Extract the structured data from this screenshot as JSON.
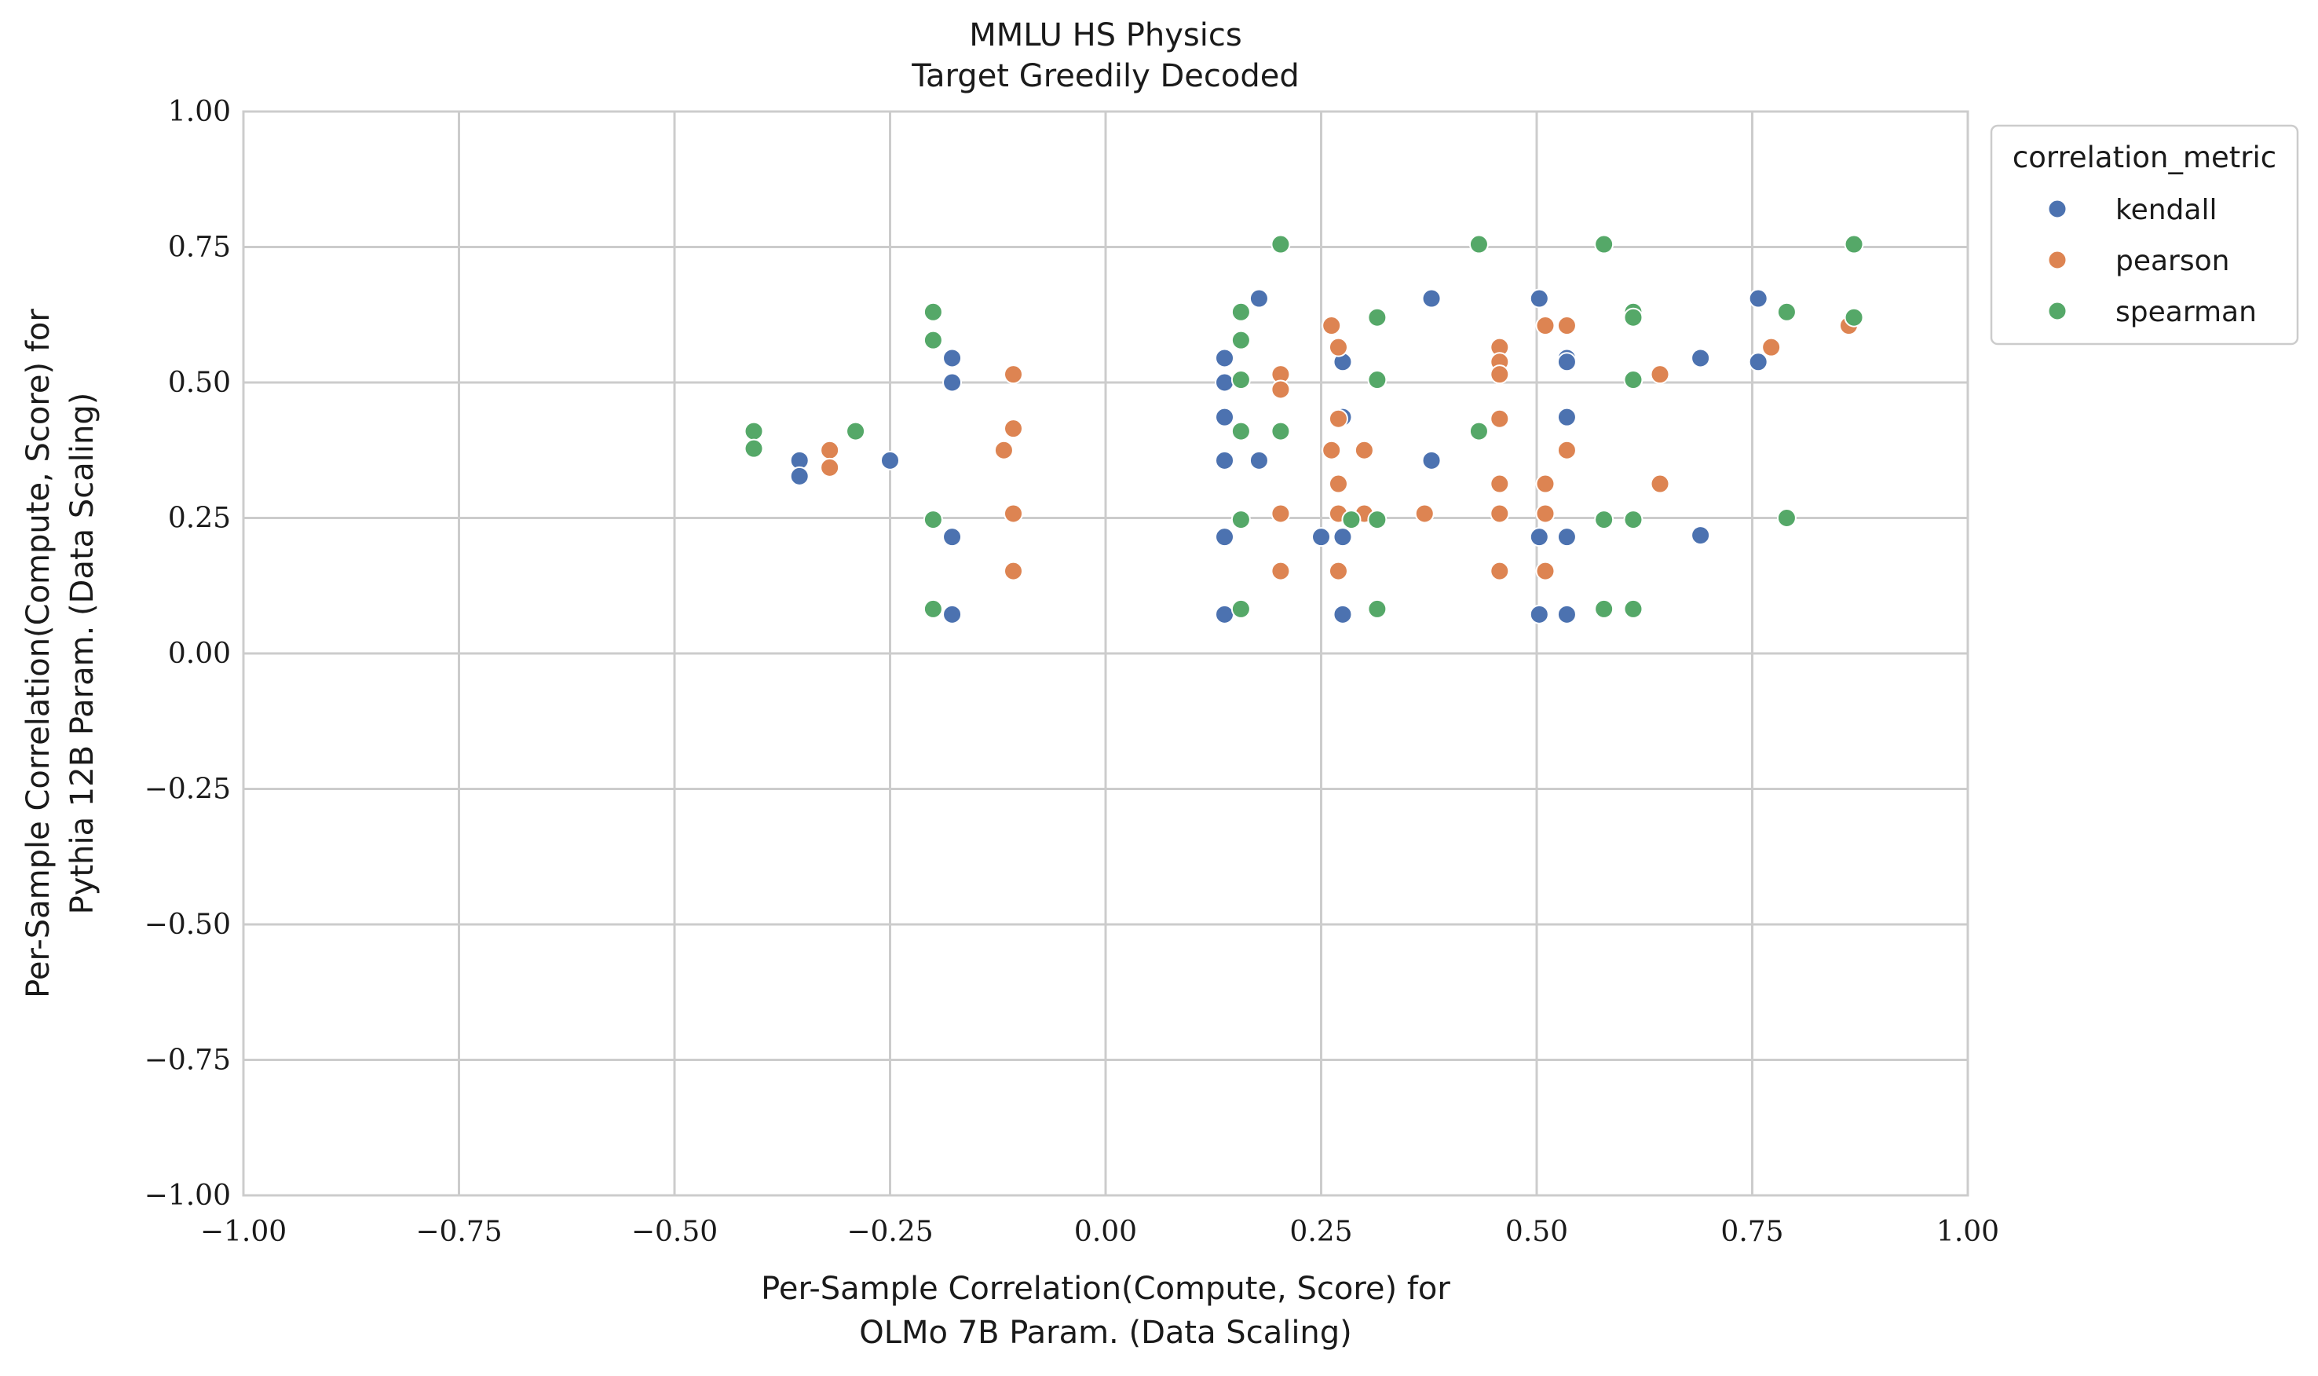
{
  "chart_data": {
    "type": "scatter",
    "title": "MMLU HS Physics",
    "subtitle": "Target Greedily Decoded",
    "xlabel": [
      "Per-Sample Correlation(Compute, Score) for",
      "OLMo 7B Param. (Data Scaling)"
    ],
    "ylabel": [
      "Per-Sample Correlation(Compute, Score) for",
      "Pythia 12B Param. (Data Scaling)"
    ],
    "xlim": [
      -1.0,
      1.0
    ],
    "ylim": [
      -1.0,
      1.0
    ],
    "xticks": [
      "−1.00",
      "−0.75",
      "−0.50",
      "−0.25",
      "0.00",
      "0.25",
      "0.50",
      "0.75",
      "1.00"
    ],
    "yticks": [
      "−1.00",
      "−0.75",
      "−0.50",
      "−0.25",
      "0.00",
      "0.25",
      "0.50",
      "0.75",
      "1.00"
    ],
    "grid": true,
    "legend": {
      "title": "correlation_metric",
      "placement": "outside upper right"
    },
    "series": [
      {
        "name": "kendall",
        "color": "#4c72b0",
        "points": [
          [
            -0.355,
            0.356
          ],
          [
            -0.355,
            0.327
          ],
          [
            -0.25,
            0.356
          ],
          [
            -0.178,
            0.545
          ],
          [
            -0.178,
            0.5
          ],
          [
            -0.178,
            0.215
          ],
          [
            -0.178,
            0.072
          ],
          [
            0.138,
            0.545
          ],
          [
            0.138,
            0.5
          ],
          [
            0.138,
            0.436
          ],
          [
            0.138,
            0.356
          ],
          [
            0.138,
            0.215
          ],
          [
            0.138,
            0.072
          ],
          [
            0.178,
            0.655
          ],
          [
            0.178,
            0.356
          ],
          [
            0.25,
            0.215
          ],
          [
            0.275,
            0.538
          ],
          [
            0.275,
            0.436
          ],
          [
            0.275,
            0.215
          ],
          [
            0.275,
            0.072
          ],
          [
            0.378,
            0.655
          ],
          [
            0.378,
            0.356
          ],
          [
            0.503,
            0.655
          ],
          [
            0.503,
            0.215
          ],
          [
            0.503,
            0.072
          ],
          [
            0.535,
            0.545
          ],
          [
            0.535,
            0.538
          ],
          [
            0.535,
            0.436
          ],
          [
            0.535,
            0.215
          ],
          [
            0.535,
            0.072
          ],
          [
            0.69,
            0.545
          ],
          [
            0.69,
            0.218
          ],
          [
            0.757,
            0.655
          ],
          [
            0.757,
            0.538
          ]
        ]
      },
      {
        "name": "pearson",
        "color": "#dd8452",
        "points": [
          [
            -0.32,
            0.375
          ],
          [
            -0.32,
            0.343
          ],
          [
            -0.118,
            0.375
          ],
          [
            -0.107,
            0.515
          ],
          [
            -0.107,
            0.415
          ],
          [
            -0.107,
            0.258
          ],
          [
            -0.107,
            0.152
          ],
          [
            0.203,
            0.515
          ],
          [
            0.203,
            0.487
          ],
          [
            0.203,
            0.258
          ],
          [
            0.203,
            0.152
          ],
          [
            0.262,
            0.605
          ],
          [
            0.262,
            0.375
          ],
          [
            0.27,
            0.565
          ],
          [
            0.27,
            0.433
          ],
          [
            0.27,
            0.313
          ],
          [
            0.27,
            0.258
          ],
          [
            0.27,
            0.152
          ],
          [
            0.3,
            0.375
          ],
          [
            0.3,
            0.258
          ],
          [
            0.37,
            0.258
          ],
          [
            0.457,
            0.565
          ],
          [
            0.457,
            0.538
          ],
          [
            0.457,
            0.515
          ],
          [
            0.457,
            0.433
          ],
          [
            0.457,
            0.313
          ],
          [
            0.457,
            0.258
          ],
          [
            0.457,
            0.152
          ],
          [
            0.51,
            0.605
          ],
          [
            0.51,
            0.313
          ],
          [
            0.51,
            0.258
          ],
          [
            0.51,
            0.152
          ],
          [
            0.535,
            0.605
          ],
          [
            0.535,
            0.375
          ],
          [
            0.643,
            0.515
          ],
          [
            0.643,
            0.313
          ],
          [
            0.772,
            0.565
          ],
          [
            0.862,
            0.605
          ]
        ]
      },
      {
        "name": "spearman",
        "color": "#55a868",
        "points": [
          [
            -0.408,
            0.41
          ],
          [
            -0.408,
            0.378
          ],
          [
            -0.29,
            0.41
          ],
          [
            -0.2,
            0.63
          ],
          [
            -0.2,
            0.578
          ],
          [
            -0.2,
            0.247
          ],
          [
            -0.2,
            0.082
          ],
          [
            0.157,
            0.63
          ],
          [
            0.157,
            0.578
          ],
          [
            0.157,
            0.505
          ],
          [
            0.157,
            0.41
          ],
          [
            0.157,
            0.247
          ],
          [
            0.157,
            0.082
          ],
          [
            0.203,
            0.755
          ],
          [
            0.203,
            0.41
          ],
          [
            0.285,
            0.247
          ],
          [
            0.315,
            0.62
          ],
          [
            0.315,
            0.505
          ],
          [
            0.315,
            0.247
          ],
          [
            0.315,
            0.082
          ],
          [
            0.433,
            0.755
          ],
          [
            0.433,
            0.41
          ],
          [
            0.578,
            0.755
          ],
          [
            0.578,
            0.247
          ],
          [
            0.578,
            0.082
          ],
          [
            0.612,
            0.63
          ],
          [
            0.612,
            0.62
          ],
          [
            0.612,
            0.505
          ],
          [
            0.612,
            0.247
          ],
          [
            0.612,
            0.082
          ],
          [
            0.79,
            0.63
          ],
          [
            0.79,
            0.25
          ],
          [
            0.868,
            0.755
          ],
          [
            0.868,
            0.62
          ]
        ]
      }
    ]
  }
}
